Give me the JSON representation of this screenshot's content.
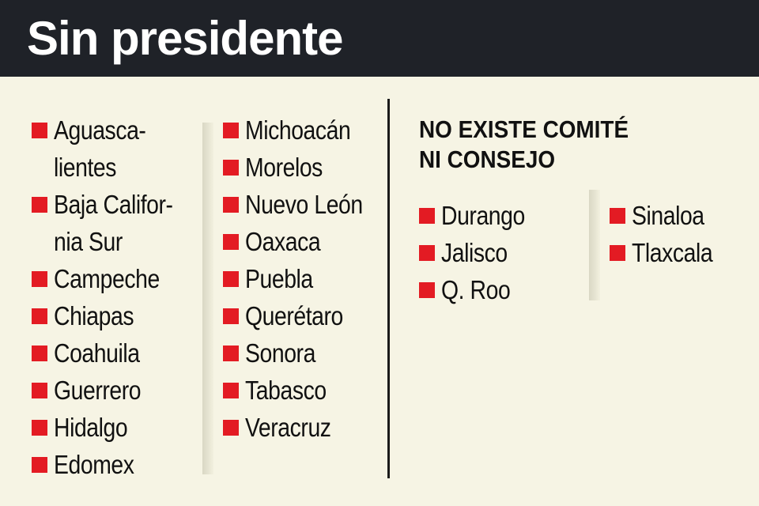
{
  "title": "Sin presidente",
  "left_col1": [
    "Aguasca-",
    "lientes",
    "Baja Califor-",
    "nia Sur",
    "Campeche",
    "Chiapas",
    "Coahuila",
    "Guerrero",
    "Hidalgo",
    "Edomex"
  ],
  "left_col2": [
    "Michoacán",
    "Morelos",
    "Nuevo León",
    "Oaxaca",
    "Puebla",
    "Querétaro",
    "Sonora",
    "Tabasco",
    "Veracruz"
  ],
  "right_heading": [
    "NO EXISTE COMITÉ",
    "NI CONSEJO"
  ],
  "right_col1": [
    "Durango",
    "Jalisco",
    "Q. Roo"
  ],
  "right_col2": [
    "Sinaloa",
    "Tlaxcala"
  ],
  "colors": {
    "header": "#1f2228",
    "bullet": "#e31b23",
    "background": "#f6f4e4"
  }
}
